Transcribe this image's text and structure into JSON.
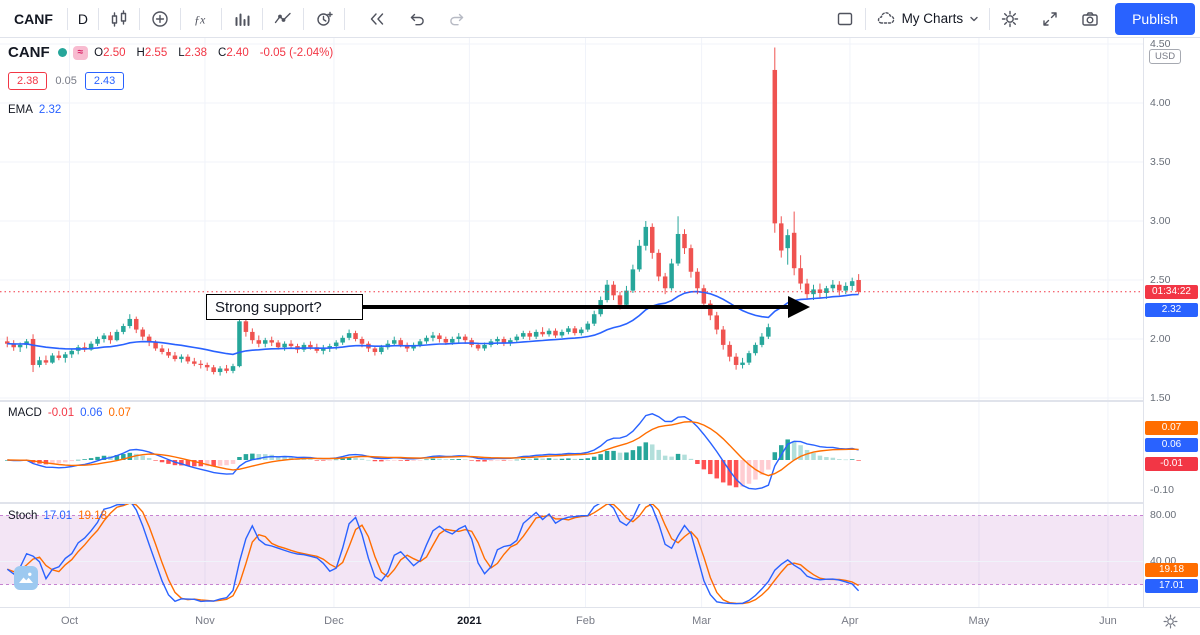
{
  "toolbar": {
    "symbol": "CANF",
    "interval": "D",
    "my_charts": "My Charts",
    "publish": "Publish"
  },
  "legend": {
    "symbol": "CANF",
    "approx_symbol": "≈",
    "ohlc": {
      "o_label": "O",
      "o": "2.50",
      "h_label": "H",
      "h": "2.55",
      "l_label": "L",
      "l": "2.38",
      "c_label": "C",
      "c": "2.40",
      "change": "-0.05 (-2.04%)"
    },
    "bid": "2.38",
    "spread": "0.05",
    "ask": "2.43",
    "ema_label": "EMA",
    "ema_value": "2.32"
  },
  "macd_legend": {
    "label": "MACD",
    "hist": "-0.01",
    "macd": "0.06",
    "signal": "0.07"
  },
  "stoch_legend": {
    "label": "Stoch",
    "k": "17.01",
    "d": "19.18"
  },
  "price_axis": {
    "labels": [
      "4.50",
      "4.00",
      "3.50",
      "3.00",
      "2.50",
      "2.00",
      "1.50"
    ],
    "currency": "USD",
    "countdown": "01:34:22",
    "ema_box": "2.32"
  },
  "macd_axis": {
    "signal_box": "0.07",
    "macd_box": "0.06",
    "hist_box": "-0.01",
    "min_label": "-0.10"
  },
  "stoch_axis": {
    "upper": "80.00",
    "mid": "40.00",
    "d_box": "19.18",
    "k_box": "17.01"
  },
  "annotation": {
    "text": "Strong support?"
  },
  "colors": {
    "up": "#26a69a",
    "down": "#ef5350",
    "down_text": "#f23645",
    "ema": "#2962ff",
    "macd_line": "#2962ff",
    "signal_line": "#ff6d00",
    "hist_up": "#26a69a",
    "hist_up_fade": "#b2dfdb",
    "hist_down": "#ff5252",
    "hist_down_fade": "#ffcdd2",
    "k_line": "#2962ff",
    "d_line": "#ff6d00",
    "band": "#9c27b0",
    "accent": "#2962ff"
  },
  "chart_data": {
    "type": "candlestick",
    "symbol": "CANF",
    "interval": "D",
    "currency": "USD",
    "price_range": [
      1.5,
      4.5
    ],
    "price_ticks": [
      4.5,
      4.0,
      3.5,
      3.0,
      2.5,
      2.0,
      1.5
    ],
    "last": {
      "open": 2.5,
      "high": 2.55,
      "low": 2.38,
      "close": 2.4,
      "change": -0.05,
      "change_pct": -2.04
    },
    "indicators": {
      "ema_period": 30,
      "ema_value": 2.32,
      "macd": {
        "fast": 12,
        "slow": 26,
        "signal": 9,
        "hist": -0.01,
        "macd_value": 0.06,
        "signal_value": 0.07,
        "axis_min": -0.1
      },
      "stoch": {
        "k_period": 14,
        "smooth": 3,
        "d_period": 3,
        "k_value": 17.01,
        "d_value": 19.18,
        "bands": [
          80,
          20
        ],
        "axis": [
          80,
          40
        ]
      }
    },
    "month_ticks": [
      {
        "label": "Oct",
        "bar": 10
      },
      {
        "label": "Nov",
        "bar": 31
      },
      {
        "label": "Dec",
        "bar": 51
      },
      {
        "label": "2021",
        "bar": 72
      },
      {
        "label": "Feb",
        "bar": 90
      },
      {
        "label": "Mar",
        "bar": 108
      },
      {
        "label": "Apr",
        "bar": 131
      },
      {
        "label": "May",
        "bar": 151
      },
      {
        "label": "Jun",
        "bar": 171
      }
    ],
    "ohlc": [
      [
        1.98,
        2.02,
        1.93,
        1.96
      ],
      [
        1.96,
        1.99,
        1.9,
        1.93
      ],
      [
        1.93,
        1.97,
        1.89,
        1.95
      ],
      [
        1.95,
        2.0,
        1.92,
        1.98
      ],
      [
        2.0,
        2.04,
        1.72,
        1.78
      ],
      [
        1.78,
        1.85,
        1.76,
        1.82
      ],
      [
        1.82,
        1.86,
        1.78,
        1.8
      ],
      [
        1.8,
        1.88,
        1.79,
        1.86
      ],
      [
        1.86,
        1.9,
        1.82,
        1.84
      ],
      [
        1.84,
        1.89,
        1.8,
        1.87
      ],
      [
        1.87,
        1.92,
        1.84,
        1.9
      ],
      [
        1.9,
        1.95,
        1.87,
        1.93
      ],
      [
        1.93,
        1.97,
        1.89,
        1.91
      ],
      [
        1.91,
        1.98,
        1.9,
        1.96
      ],
      [
        1.96,
        2.02,
        1.94,
        2.0
      ],
      [
        2.0,
        2.05,
        1.97,
        2.03
      ],
      [
        2.03,
        2.06,
        1.96,
        1.99
      ],
      [
        1.99,
        2.08,
        1.98,
        2.06
      ],
      [
        2.06,
        2.13,
        2.04,
        2.11
      ],
      [
        2.11,
        2.21,
        2.09,
        2.17
      ],
      [
        2.17,
        2.19,
        2.05,
        2.08
      ],
      [
        2.08,
        2.1,
        1.99,
        2.02
      ],
      [
        2.02,
        2.04,
        1.94,
        1.97
      ],
      [
        1.97,
        1.99,
        1.9,
        1.92
      ],
      [
        1.92,
        1.95,
        1.87,
        1.89
      ],
      [
        1.89,
        1.92,
        1.84,
        1.86
      ],
      [
        1.86,
        1.89,
        1.81,
        1.83
      ],
      [
        1.83,
        1.87,
        1.8,
        1.85
      ],
      [
        1.85,
        1.87,
        1.79,
        1.81
      ],
      [
        1.81,
        1.84,
        1.77,
        1.79
      ],
      [
        1.79,
        1.82,
        1.75,
        1.78
      ],
      [
        1.78,
        1.8,
        1.73,
        1.76
      ],
      [
        1.76,
        1.78,
        1.7,
        1.72
      ],
      [
        1.72,
        1.77,
        1.69,
        1.75
      ],
      [
        1.75,
        1.78,
        1.71,
        1.73
      ],
      [
        1.73,
        1.79,
        1.71,
        1.77
      ],
      [
        1.77,
        2.22,
        1.76,
        2.15
      ],
      [
        2.15,
        2.18,
        2.02,
        2.06
      ],
      [
        2.06,
        2.09,
        1.96,
        1.99
      ],
      [
        1.99,
        2.03,
        1.93,
        1.96
      ],
      [
        1.96,
        2.01,
        1.93,
        1.99
      ],
      [
        1.99,
        2.02,
        1.94,
        1.97
      ],
      [
        1.97,
        1.99,
        1.91,
        1.93
      ],
      [
        1.93,
        1.98,
        1.9,
        1.96
      ],
      [
        1.96,
        1.99,
        1.92,
        1.94
      ],
      [
        1.94,
        1.96,
        1.88,
        1.91
      ],
      [
        1.91,
        1.97,
        1.89,
        1.95
      ],
      [
        1.95,
        1.98,
        1.91,
        1.93
      ],
      [
        1.93,
        1.96,
        1.88,
        1.9
      ],
      [
        1.9,
        1.95,
        1.87,
        1.92
      ],
      [
        1.92,
        1.96,
        1.89,
        1.94
      ],
      [
        1.94,
        1.99,
        1.91,
        1.97
      ],
      [
        1.97,
        2.03,
        1.95,
        2.01
      ],
      [
        2.01,
        2.08,
        1.99,
        2.05
      ],
      [
        2.05,
        2.07,
        1.98,
        2.0
      ],
      [
        2.0,
        2.02,
        1.93,
        1.96
      ],
      [
        1.96,
        1.98,
        1.89,
        1.92
      ],
      [
        1.92,
        1.94,
        1.86,
        1.89
      ],
      [
        1.89,
        1.95,
        1.87,
        1.93
      ],
      [
        1.93,
        1.99,
        1.91,
        1.96
      ],
      [
        1.96,
        2.02,
        1.94,
        1.99
      ],
      [
        1.99,
        2.01,
        1.93,
        1.95
      ],
      [
        1.95,
        1.97,
        1.89,
        1.92
      ],
      [
        1.92,
        1.97,
        1.9,
        1.95
      ],
      [
        1.95,
        2.0,
        1.93,
        1.98
      ],
      [
        1.98,
        2.03,
        1.96,
        2.01
      ],
      [
        2.01,
        2.06,
        1.98,
        2.03
      ],
      [
        2.03,
        2.05,
        1.97,
        2.0
      ],
      [
        2.0,
        2.02,
        1.95,
        1.97
      ],
      [
        1.97,
        2.02,
        1.95,
        2.0
      ],
      [
        2.0,
        2.05,
        1.97,
        2.02
      ],
      [
        2.02,
        2.04,
        1.96,
        1.99
      ],
      [
        1.99,
        2.01,
        1.93,
        1.95
      ],
      [
        1.95,
        1.97,
        1.9,
        1.92
      ],
      [
        1.92,
        1.97,
        1.9,
        1.95
      ],
      [
        1.95,
        2.0,
        1.93,
        1.98
      ],
      [
        1.98,
        2.02,
        1.95,
        2.0
      ],
      [
        2.0,
        2.02,
        1.94,
        1.97
      ],
      [
        1.97,
        2.01,
        1.94,
        1.99
      ],
      [
        1.99,
        2.04,
        1.97,
        2.02
      ],
      [
        2.02,
        2.07,
        2.0,
        2.05
      ],
      [
        2.05,
        2.07,
        1.99,
        2.02
      ],
      [
        2.02,
        2.08,
        2.0,
        2.06
      ],
      [
        2.06,
        2.1,
        2.02,
        2.04
      ],
      [
        2.04,
        2.09,
        2.02,
        2.07
      ],
      [
        2.07,
        2.09,
        2.01,
        2.03
      ],
      [
        2.03,
        2.08,
        2.01,
        2.06
      ],
      [
        2.06,
        2.11,
        2.04,
        2.09
      ],
      [
        2.09,
        2.11,
        2.03,
        2.05
      ],
      [
        2.05,
        2.1,
        2.03,
        2.08
      ],
      [
        2.08,
        2.15,
        2.06,
        2.13
      ],
      [
        2.13,
        2.24,
        2.11,
        2.21
      ],
      [
        2.21,
        2.36,
        2.19,
        2.33
      ],
      [
        2.33,
        2.5,
        2.31,
        2.46
      ],
      [
        2.46,
        2.49,
        2.33,
        2.37
      ],
      [
        2.37,
        2.4,
        2.25,
        2.29
      ],
      [
        2.29,
        2.45,
        2.27,
        2.41
      ],
      [
        2.41,
        2.63,
        2.39,
        2.59
      ],
      [
        2.59,
        2.84,
        2.57,
        2.79
      ],
      [
        2.79,
        3.0,
        2.75,
        2.95
      ],
      [
        2.95,
        2.98,
        2.68,
        2.73
      ],
      [
        2.73,
        2.76,
        2.49,
        2.53
      ],
      [
        2.53,
        2.56,
        2.38,
        2.43
      ],
      [
        2.43,
        2.68,
        2.41,
        2.64
      ],
      [
        2.64,
        3.04,
        2.62,
        2.89
      ],
      [
        2.89,
        2.93,
        2.72,
        2.77
      ],
      [
        2.77,
        2.8,
        2.52,
        2.57
      ],
      [
        2.57,
        2.6,
        2.38,
        2.43
      ],
      [
        2.43,
        2.46,
        2.26,
        2.3
      ],
      [
        2.3,
        2.33,
        2.16,
        2.2
      ],
      [
        2.2,
        2.23,
        2.04,
        2.08
      ],
      [
        2.08,
        2.11,
        1.91,
        1.95
      ],
      [
        1.95,
        1.98,
        1.81,
        1.85
      ],
      [
        1.85,
        1.88,
        1.74,
        1.78
      ],
      [
        1.78,
        1.84,
        1.75,
        1.8
      ],
      [
        1.8,
        1.9,
        1.78,
        1.88
      ],
      [
        1.88,
        1.97,
        1.86,
        1.95
      ],
      [
        1.95,
        2.05,
        1.93,
        2.02
      ],
      [
        2.02,
        2.13,
        2.0,
        2.1
      ],
      [
        4.28,
        4.47,
        2.9,
        2.98
      ],
      [
        2.98,
        3.04,
        2.69,
        2.75
      ],
      [
        2.77,
        2.93,
        2.63,
        2.88
      ],
      [
        2.9,
        3.08,
        2.54,
        2.6
      ],
      [
        2.6,
        2.71,
        2.42,
        2.47
      ],
      [
        2.47,
        2.51,
        2.34,
        2.38
      ],
      [
        2.38,
        2.46,
        2.33,
        2.42
      ],
      [
        2.42,
        2.47,
        2.35,
        2.39
      ],
      [
        2.39,
        2.45,
        2.34,
        2.43
      ],
      [
        2.43,
        2.5,
        2.4,
        2.46
      ],
      [
        2.46,
        2.49,
        2.37,
        2.41
      ],
      [
        2.41,
        2.48,
        2.38,
        2.45
      ],
      [
        2.45,
        2.52,
        2.41,
        2.49
      ],
      [
        2.5,
        2.55,
        2.38,
        2.4
      ]
    ]
  }
}
